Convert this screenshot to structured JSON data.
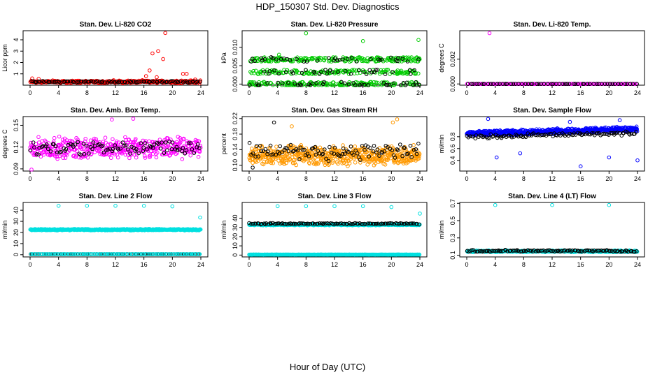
{
  "title": "HDP_150307  Std. Dev. Diagnostics",
  "xlabel": "Hour of Day (UTC)",
  "chart_data": [
    {
      "type": "scatter",
      "title": "Stan. Dev. Li-820 CO2",
      "ylabel": "Licor ppm",
      "xlim": [
        0,
        24
      ],
      "ylim": [
        0,
        4.8
      ],
      "xticks": [
        "0",
        "4",
        "8",
        "12",
        "16",
        "20",
        "24"
      ],
      "yticks": [
        "1",
        "2",
        "3",
        "4"
      ],
      "series": [
        {
          "color": "#ff0000",
          "baseline": 0.3,
          "spread": 0.15,
          "count": 300,
          "outliers": [
            [
              0.3,
              0.6
            ],
            [
              1.2,
              0.55
            ],
            [
              16.3,
              0.8
            ],
            [
              16.8,
              1.3
            ],
            [
              17.2,
              2.8
            ],
            [
              17.8,
              0.7
            ],
            [
              18.0,
              3.0
            ],
            [
              18.7,
              2.3
            ],
            [
              19.0,
              4.6
            ],
            [
              21.5,
              1.0
            ],
            [
              22.0,
              1.0
            ],
            [
              23.2,
              0.5
            ]
          ]
        },
        {
          "color": "#000000",
          "baseline": 0.3,
          "spread": 0.08,
          "count": 90,
          "outliers": []
        }
      ]
    },
    {
      "type": "scatter",
      "title": "Stan. Dev. Li-820 Pressure",
      "ylabel": "kPa",
      "xlim": [
        0,
        24
      ],
      "ylim": [
        -0.0003,
        0.0145
      ],
      "xticks": [
        "0",
        "4",
        "8",
        "12",
        "16",
        "20",
        "24"
      ],
      "yticks": [
        "0.000",
        "0.005",
        "0.010"
      ],
      "series": [
        {
          "color": "#00cc00",
          "levels": [
            0.0,
            0.0033,
            0.0067
          ],
          "count": 520,
          "outliers": [
            [
              8.0,
              0.0138
            ],
            [
              16.0,
              0.0117
            ],
            [
              23.8,
              0.012
            ],
            [
              4.2,
              0.008
            ]
          ]
        },
        {
          "color": "#000000",
          "levels": [
            0.0,
            0.0033,
            0.0067
          ],
          "count": 110,
          "outliers": [
            [
              23.8,
              0.0067
            ]
          ]
        }
      ]
    },
    {
      "type": "scatter",
      "title": "Stan. Dev. Li-820 Temp.",
      "ylabel": "degrees C",
      "xlim": [
        0,
        24
      ],
      "ylim": [
        -0.0001,
        0.0043
      ],
      "xticks": [
        "0",
        "4",
        "8",
        "12",
        "16",
        "20",
        "24"
      ],
      "yticks": [
        "0.000",
        "0.002"
      ],
      "series": [
        {
          "color": "#ff00ff",
          "baseline": 0.0,
          "spread": 0.0,
          "count": 140,
          "outliers": [
            [
              3.2,
              0.0041
            ]
          ]
        },
        {
          "color": "#000000",
          "baseline": 0.0,
          "spread": 0.0,
          "count": 60,
          "outliers": []
        }
      ]
    },
    {
      "type": "scatter",
      "title": "Stan. Dev. Amb. Box Temp.",
      "ylabel": "degrees C",
      "xlim": [
        0,
        24
      ],
      "ylim": [
        0.087,
        0.162
      ],
      "xticks": [
        "0",
        "4",
        "8",
        "12",
        "16",
        "20",
        "24"
      ],
      "yticks": [
        "0.09",
        "0.12",
        "0.15"
      ],
      "series": [
        {
          "color": "#ff00ff",
          "baseline": 0.119,
          "spread": 0.017,
          "count": 460,
          "outliers": [
            [
              11.5,
              0.158
            ],
            [
              14.5,
              0.159
            ],
            [
              0.2,
              0.089
            ]
          ]
        },
        {
          "color": "#000000",
          "baseline": 0.119,
          "spread": 0.012,
          "count": 95,
          "outliers": []
        }
      ]
    },
    {
      "type": "scatter",
      "title": "Stan. Dev. Gas Stream RH",
      "ylabel": "percent",
      "xlim": [
        0,
        24
      ],
      "ylim": [
        0.085,
        0.225
      ],
      "xticks": [
        "0",
        "4",
        "8",
        "12",
        "16",
        "20",
        "24"
      ],
      "yticks": [
        "0.10",
        "0.14",
        "0.18",
        "0.22"
      ],
      "series": [
        {
          "color": "#ff9900",
          "baseline": 0.125,
          "spread": 0.028,
          "count": 560,
          "outliers": [
            [
              20.8,
              0.218
            ],
            [
              20.2,
              0.21
            ],
            [
              6.0,
              0.2
            ]
          ]
        },
        {
          "color": "#000000",
          "baseline": 0.135,
          "spread": 0.025,
          "count": 100,
          "outliers": [
            [
              3.5,
              0.21
            ],
            [
              0.5,
              0.094
            ]
          ]
        }
      ]
    },
    {
      "type": "scatter",
      "title": "Stan. Dev. Sample Flow",
      "ylabel": "ml/min",
      "xlim": [
        0,
        24
      ],
      "ylim": [
        0.22,
        1.14
      ],
      "xticks": [
        "0",
        "4",
        "8",
        "12",
        "16",
        "20",
        "24"
      ],
      "yticks": [
        "0.4",
        "0.6",
        "0.8"
      ],
      "series": [
        {
          "color": "#0000ff",
          "trend": [
            0.85,
            0.93
          ],
          "spread": 0.05,
          "count": 600,
          "outliers": [
            [
              4.2,
              0.45
            ],
            [
              7.5,
              0.52
            ],
            [
              16.0,
              0.3
            ],
            [
              20.0,
              0.45
            ],
            [
              24.0,
              0.4
            ],
            [
              14.5,
              1.05
            ],
            [
              3.0,
              1.1
            ],
            [
              21.5,
              1.08
            ]
          ]
        },
        {
          "color": "#000000",
          "trend": [
            0.8,
            0.86
          ],
          "spread": 0.04,
          "count": 110,
          "outliers": []
        }
      ]
    },
    {
      "type": "scatter",
      "title": "Stan. Dev. Line 2 Flow",
      "ylabel": "ml/min",
      "xlim": [
        0,
        24
      ],
      "ylim": [
        -2,
        47
      ],
      "xticks": [
        "0",
        "4",
        "8",
        "12",
        "16",
        "20",
        "24"
      ],
      "yticks": [
        "0",
        "10",
        "20",
        "30",
        "40"
      ],
      "series": [
        {
          "color": "#00e0e0",
          "baseline": 22.5,
          "spread": 0.8,
          "count": 420,
          "outliers": [
            [
              4.0,
              44
            ],
            [
              8.0,
              44
            ],
            [
              12.0,
              44
            ],
            [
              16.0,
              44
            ],
            [
              20.0,
              43.5
            ],
            [
              23.9,
              33.5
            ]
          ]
        },
        {
          "color": "#000000",
          "baseline": 0.5,
          "spread": 0.0,
          "count": 100,
          "outliers": []
        },
        {
          "color": "#00e0e0",
          "baseline": 0.5,
          "spread": 0.0,
          "count": 120,
          "outliers": []
        }
      ]
    },
    {
      "type": "scatter",
      "title": "Stan. Dev. Line 3 Flow",
      "ylabel": "ml/min",
      "xlim": [
        0,
        24
      ],
      "ylim": [
        -2,
        57
      ],
      "xticks": [
        "0",
        "4",
        "8",
        "12",
        "16",
        "20",
        "24"
      ],
      "yticks": [
        "0",
        "10",
        "20",
        "30",
        "40"
      ],
      "series": [
        {
          "color": "#00e0e0",
          "baseline": 33,
          "spread": 0.9,
          "count": 420,
          "outliers": [
            [
              4.0,
              53
            ],
            [
              8.0,
              53
            ],
            [
              12.0,
              53
            ],
            [
              16.0,
              53
            ],
            [
              20.0,
              52
            ],
            [
              24.0,
              45
            ]
          ]
        },
        {
          "color": "#000000",
          "baseline": 34,
          "spread": 0.8,
          "count": 110,
          "outliers": []
        },
        {
          "color": "#00e0e0",
          "baseline": 0.5,
          "spread": 0.15,
          "count": 380,
          "outliers": []
        }
      ]
    },
    {
      "type": "scatter",
      "title": "Stan. Dev. Line 4 (LT) Flow",
      "ylabel": "ml/min",
      "xlim": [
        0,
        24
      ],
      "ylim": [
        0.08,
        0.71
      ],
      "xticks": [
        "0",
        "4",
        "8",
        "12",
        "16",
        "20",
        "24"
      ],
      "yticks": [
        "0.1",
        "0.3",
        "0.5",
        "0.7"
      ],
      "series": [
        {
          "color": "#00e0e0",
          "baseline": 0.145,
          "spread": 0.012,
          "count": 420,
          "outliers": [
            [
              4.0,
              0.68
            ],
            [
              12.0,
              0.68
            ],
            [
              20.0,
              0.68
            ]
          ]
        },
        {
          "color": "#000000",
          "baseline": 0.15,
          "spread": 0.013,
          "count": 110,
          "outliers": []
        }
      ]
    }
  ]
}
